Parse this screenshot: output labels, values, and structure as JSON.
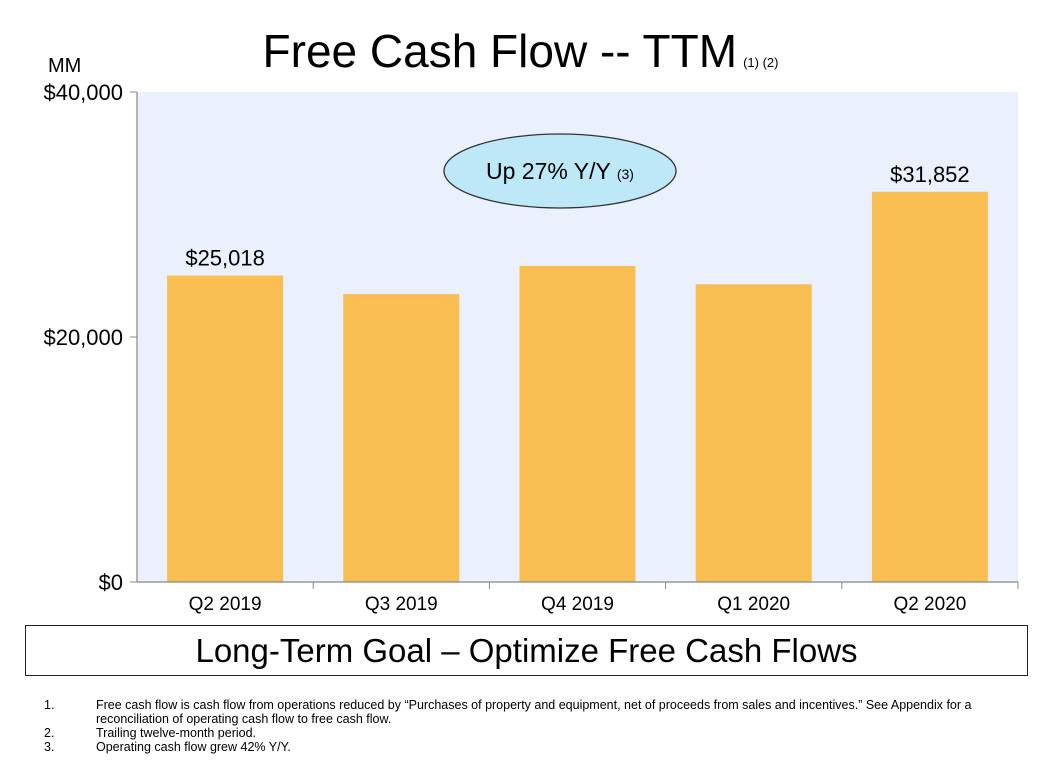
{
  "chart_data": {
    "type": "bar",
    "title": "Free Cash Flow -- TTM",
    "title_notes": "(1) (2)",
    "unit_label": "MM",
    "categories": [
      "Q2 2019",
      "Q3 2019",
      "Q4 2019",
      "Q1 2020",
      "Q2 2020"
    ],
    "values": [
      25018,
      23500,
      25800,
      24300,
      31852
    ],
    "data_labels": [
      "$25,018",
      "",
      "",
      "",
      "$31,852"
    ],
    "ylim": [
      0,
      40000
    ],
    "yticks": [
      {
        "value": 0,
        "label": "$0"
      },
      {
        "value": 20000,
        "label": "$20,000"
      },
      {
        "value": 40000,
        "label": "$40,000"
      }
    ],
    "annotation": {
      "text": "Up 27% Y/Y",
      "note": "(3)"
    },
    "colors": {
      "bar": "#F8BE51",
      "plot_background": "#EAF1FC",
      "callout_fill": "#BDE8F8"
    },
    "grid": false
  },
  "goal_text": "Long-Term Goal – Optimize Free Cash Flows",
  "footnotes": [
    {
      "num": "1.",
      "text": "Free cash flow is cash flow from operations reduced by “Purchases of property and equipment, net of proceeds from sales and incentives.” See Appendix for a reconciliation of operating cash flow to free cash flow."
    },
    {
      "num": "2.",
      "text": "Trailing twelve-month period."
    },
    {
      "num": "3.",
      "text": "Operating cash flow grew 42% Y/Y."
    }
  ]
}
